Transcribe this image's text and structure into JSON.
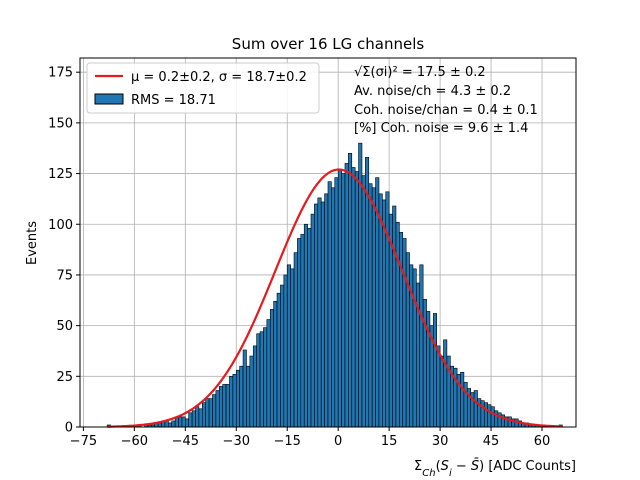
{
  "chart_data": {
    "type": "bar",
    "title": "Sum over 16 LG channels",
    "xlabel": "ΣCh(Si − S̄) [ADC Counts]",
    "ylabel": "Events",
    "xlim": [
      -76,
      70
    ],
    "ylim": [
      0,
      182
    ],
    "xticks": [
      -75,
      -60,
      -45,
      -30,
      -15,
      0,
      15,
      30,
      45,
      60
    ],
    "xtick_labels": [
      "−75",
      "−60",
      "−45",
      "−30",
      "−15",
      "0",
      "15",
      "30",
      "45",
      "60"
    ],
    "yticks": [
      0,
      25,
      50,
      75,
      100,
      125,
      150,
      175
    ],
    "ytick_labels": [
      "0",
      "25",
      "50",
      "75",
      "100",
      "125",
      "150",
      "175"
    ],
    "grid": true,
    "legend_position": "top-left",
    "bin_width": 1,
    "bin_start": -68,
    "histogram_counts": [
      1,
      0,
      0,
      0,
      0,
      0,
      0,
      0,
      1,
      1,
      0,
      1,
      1,
      1,
      2,
      2,
      3,
      3,
      2,
      3,
      5,
      5,
      5,
      4,
      7,
      8,
      10,
      9,
      12,
      14,
      14,
      16,
      18,
      20,
      21,
      21,
      25,
      26,
      28,
      30,
      38,
      30,
      35,
      40,
      46,
      47,
      49,
      53,
      58,
      62,
      66,
      70,
      75,
      80,
      78,
      86,
      93,
      95,
      100,
      98,
      105,
      110,
      113,
      111,
      115,
      121,
      118,
      123,
      127,
      125,
      130,
      135,
      128,
      126,
      140,
      124,
      133,
      120,
      118,
      123,
      115,
      112,
      116,
      105,
      109,
      101,
      96,
      93,
      86,
      80,
      78,
      71,
      80,
      63,
      57,
      50,
      56,
      40,
      35,
      43,
      35,
      30,
      29,
      26,
      27,
      22,
      19,
      17,
      18,
      14,
      13,
      12,
      11,
      10,
      8,
      7,
      6,
      5,
      5,
      4,
      4,
      3,
      2,
      2,
      1,
      1,
      1,
      1,
      1,
      0,
      0,
      0,
      0,
      1
    ],
    "fit": {
      "type": "gaussian",
      "mu": 0.2,
      "sigma": 18.7,
      "amplitude": 127
    },
    "series": [
      {
        "name": "μ = 0.2±0.2, σ = 18.7±0.2",
        "color": "#e41a1c",
        "kind": "line"
      },
      {
        "name": "RMS = 18.71",
        "color": "#1f77b4",
        "kind": "bar"
      }
    ],
    "annotations": [
      "√Σ(σi)² = 17.5 ± 0.2",
      "Av. noise/ch  = 4.3 ± 0.2",
      "Coh. noise/chan  = 0.4 ± 0.1",
      "[%] Coh. noise  = 9.6 ± 1.4"
    ]
  }
}
